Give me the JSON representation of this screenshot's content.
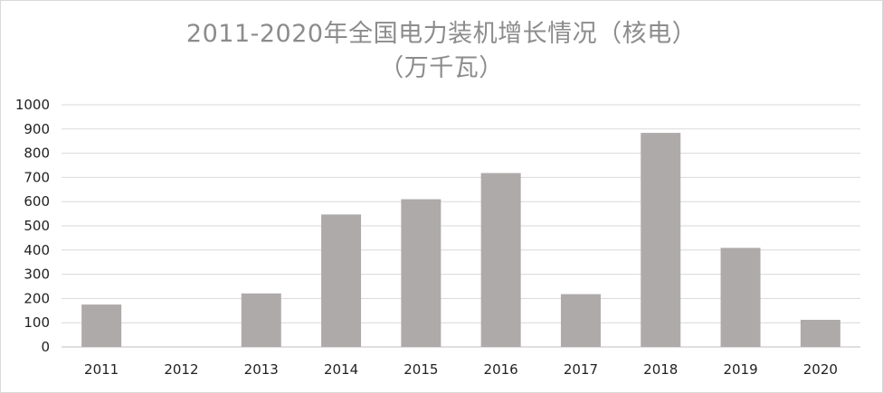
{
  "chart_data": {
    "type": "bar",
    "title": "2011-2020年全国电力装机增长情况（核电）",
    "subtitle": "（万千瓦）",
    "categories": [
      "2011",
      "2012",
      "2013",
      "2014",
      "2015",
      "2016",
      "2017",
      "2018",
      "2019",
      "2020"
    ],
    "values": [
      175,
      0,
      221,
      547,
      610,
      718,
      218,
      884,
      409,
      112
    ],
    "yticks": [
      "0",
      "100",
      "200",
      "300",
      "400",
      "500",
      "600",
      "700",
      "800",
      "900",
      "1000"
    ],
    "ylim": [
      0,
      1000
    ],
    "grid": true,
    "legend": "none",
    "colors": {
      "bar": "#aeaaaa",
      "grid": "#d9d9d9",
      "axis": "#bfbfbf",
      "title": "#8c8c8c"
    }
  }
}
